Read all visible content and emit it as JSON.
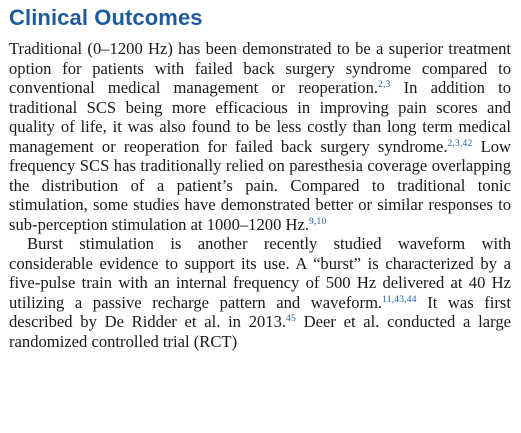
{
  "section": {
    "heading": "Clinical Outcomes"
  },
  "paragraphs": [
    {
      "runs": [
        {
          "text": "Traditional (0–1200 Hz) has been demonstrated to be a superior treatment option for patients with failed back surgery syndrome compared to conventional medical management or reoperation."
        },
        {
          "cite": "2,3"
        },
        {
          "text": " In addition to traditional SCS being more efficacious in improving pain scores and quality of life, it was also found to be less costly than long term medical management or reoperation for failed back surgery syndrome."
        },
        {
          "cite": "2,3,42"
        },
        {
          "text": " Low frequency SCS has traditionally relied on paresthesia coverage overlapping the distribution of a patient’s pain. Compared to traditional tonic stimulation, some studies have demonstrated better or similar responses to sub-perception stimulation at 1000–1200 Hz."
        },
        {
          "cite": "9,10"
        }
      ]
    },
    {
      "runs": [
        {
          "text": "Burst stimulation is another recently studied waveform with considerable evidence to support its use. A “burst” is characterized by a five-pulse train with an internal frequency of 500 Hz delivered at 40 Hz utilizing a passive recharge pattern and waveform."
        },
        {
          "cite": "11,43,44"
        },
        {
          "text": " It was first described by De Ridder et al. in 2013."
        },
        {
          "cite": "45"
        },
        {
          "text": " Deer et al. conducted a large randomized controlled trial (RCT)"
        }
      ]
    }
  ]
}
